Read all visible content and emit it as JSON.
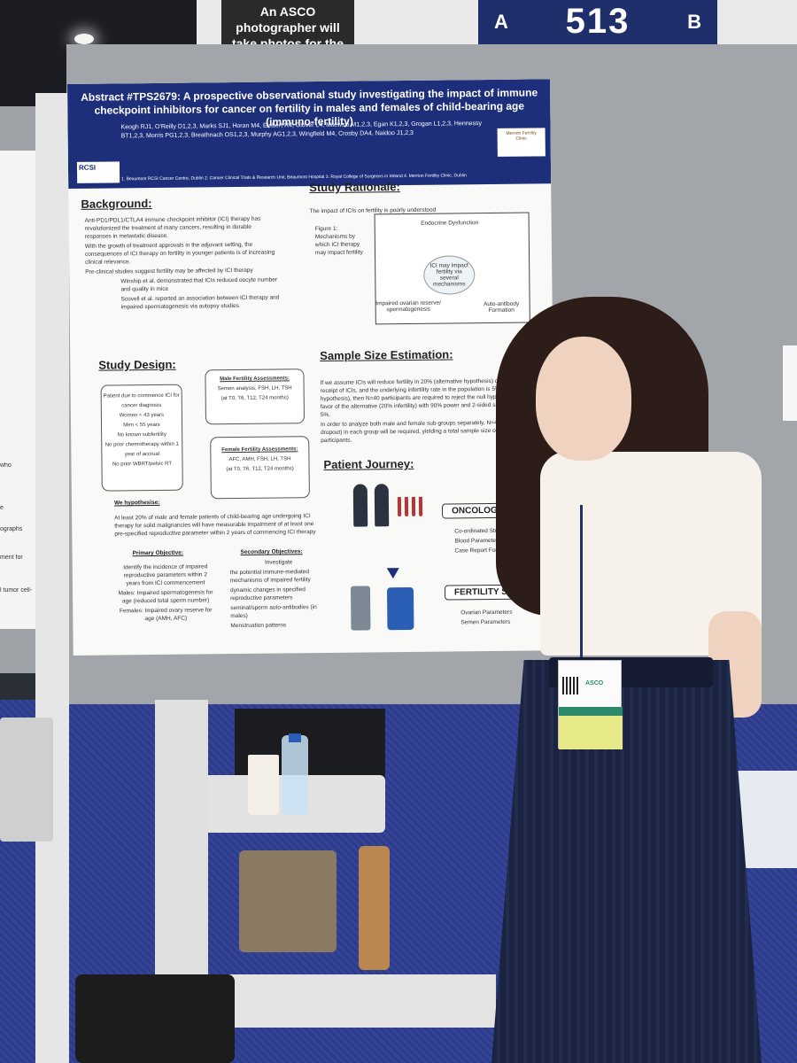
{
  "signs": {
    "photographer_notice": "An ASCO photographer will take photos for the Digital Program.",
    "board_letter_left": "A",
    "board_number": "513",
    "board_letter_right": "B"
  },
  "poster": {
    "title": "Abstract #TPS2679: A prospective observational study investigating the impact of immune checkpoint inhibitors for cancer on fertility in males and females of child-bearing age (immuno-fertility)",
    "authors": "Keogh RJ1, O'Reilly D1,2,3, Marks SJ1, Horan M4, Elebert R4, Glover L4, Milewski M1,2,3, Egan K1,2,3, Grogan L1,2,3, Hennessy BT1,2,3, Morris PG1,2,3, Breathnach OS1,2,3, Murphy AG1,2,3, Wingfield M4, Crosby DA4, Naidoo J1,2,3",
    "affiliations": "1. Beaumont RCSI Cancer Centre, Dublin 2. Cancer Clinical Trials & Research Unit, Beaumont Hospital 3. Royal College of Surgeons in Ireland 4. Merrion Fertility Clinic, Dublin",
    "logo_left": "RCSI",
    "logo_right": "Merrion Fertility Clinic",
    "background": {
      "heading": "Background:",
      "bullets": [
        "Anti-PD1/PDL1/CTLA4 immune checkpoint inhibitor (ICI) therapy has revolutionized the treatment of many cancers, resulting in durable responses in metastatic disease.",
        "With the growth of treatment approvals in the adjuvant setting, the consequences of ICI therapy on fertility in younger patients is of increasing clinical relevance.",
        "Pre-clinical studies suggest fertility may be affected by ICI therapy",
        "Winship et al. demonstrated that ICIs reduced oocyte number and quality in mice",
        "Scovell et al. reported an association between ICI therapy and impaired spermatogenesis via autopsy studies"
      ]
    },
    "rationale": {
      "heading": "Study Rationale:",
      "intro": "The impact of ICIs on fertility is poorly understood",
      "figure_caption": "Figure 1: Mechanisms by which ICI therapy may impact fertility",
      "center": "ICI may impact fertility via several mechanisms",
      "labels": [
        "Endocrine Dysfunction",
        "Impaired ovarian reserve/ spermatogenesis",
        "Auto-antibody Formation"
      ]
    },
    "design": {
      "heading": "Study Design:",
      "patient_box": [
        "Patient due to commence ICI for cancer diagnosis",
        "Women < 43 years",
        "Men < 55 years",
        "No known subfertility",
        "No prior chemotherapy within 1 year of accrual",
        "No prior WBRT/pelvic RT"
      ],
      "male_title": "Male Fertility Assessments:",
      "male_tests": "Semen analysis, FSH, LH, TSH",
      "male_times": "(at T0, T6, T12, T24 months)",
      "female_title": "Female Fertility Assessments:",
      "female_tests": "AFC, AMH, FSH, LH, TSH",
      "female_times": "(at T0, T6, T12, T24 months)"
    },
    "hypothesis": {
      "heading": "We hypothesise:",
      "text": "At least 20% of male and female patients of child-bearing age undergoing ICI therapy for solid malignancies will have measurable impairment of at least one pre-specified reproductive parameter within 2 years of commencing ICI therapy"
    },
    "primary": {
      "heading": "Primary Objective:",
      "items": [
        "Identify the incidence of impaired reproductive parameters within 2 years from ICI commencement",
        "Males: Impaired spermatogenesis for age (reduced total sperm number)",
        "Females: Impaired ovary reserve for age (AMH, AFC)"
      ]
    },
    "secondary": {
      "heading": "Secondary Objectives:",
      "intro": "Investigate",
      "items": [
        "the potential immune-mediated mechanisms of impaired fertility",
        "dynamic changes in specified reproductive parameters",
        "seminal/sperm auto-antibodies (in males)",
        "Menstruation patterns"
      ]
    },
    "sample_size": {
      "heading": "Sample Size Estimation:",
      "bullets": [
        "If we assume ICIs will reduce fertility in 20% (alternative hypothesis) of those in receipt of ICIs, and the underlying infertility rate in the population is 5% (Null hypothesis), then N=40 participants are required to reject the null hypothesis in favor of the alternative (20% infertility) with 90% power and 2-sided significance of 5%.",
        "In order to analyze both male and female sub-groups separately, N=44 (with 10% dropout) in each group will be required, yielding a total sample size of 88 participants."
      ]
    },
    "journey": {
      "heading": "Patient Journey:",
      "oncology_label": "ONCOLOGY",
      "oncology_items": [
        "Co-ordinated Study Visits",
        "Blood Parameters",
        "Case Report Forms"
      ],
      "fertility_label": "FERTILITY SITE",
      "fertility_items": [
        "Ovarian Parameters",
        "Semen Parameters"
      ]
    }
  },
  "badge": {
    "event": "ASCO"
  },
  "left_board_snippets": [
    "who",
    "e",
    "ographs",
    "ment for",
    "l tumor cell-"
  ]
}
